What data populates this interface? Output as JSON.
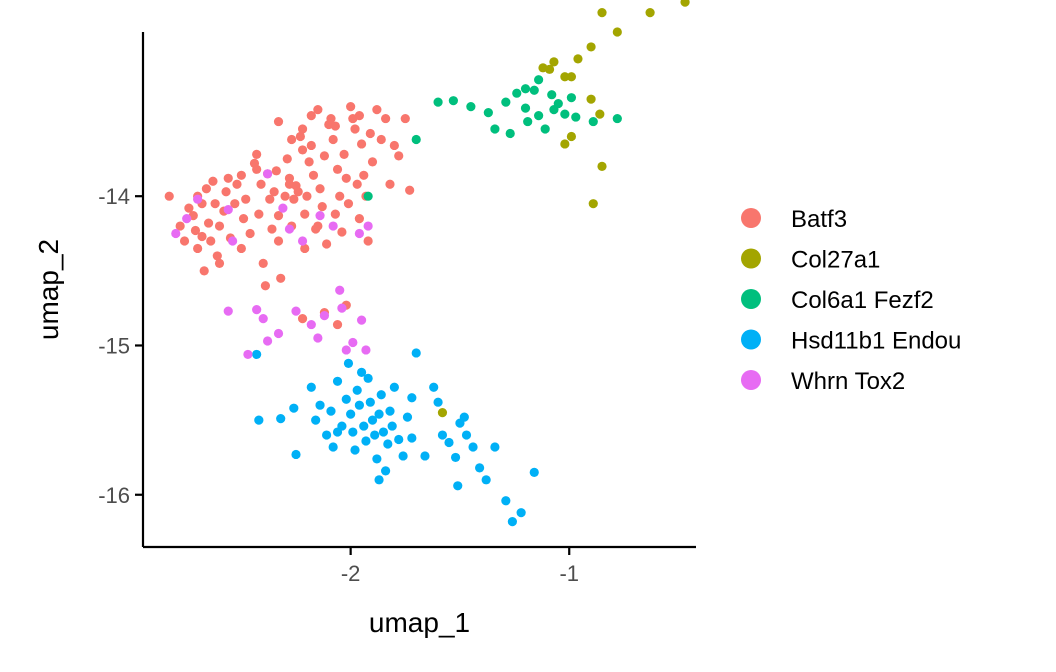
{
  "chart_data": {
    "type": "scatter",
    "xlabel": "umap_1",
    "ylabel": "umap_2",
    "xlim": [
      -2.95,
      -0.42
    ],
    "ylim": [
      -16.35,
      -12.9
    ],
    "xticks": [
      -2,
      -1
    ],
    "yticks": [
      -14,
      -15,
      -16
    ],
    "legend_position": "right",
    "series": [
      {
        "name": "Batf3",
        "color": "#F8766D",
        "points": [
          [
            -2.83,
            -14.0
          ],
          [
            -2.78,
            -14.2
          ],
          [
            -2.76,
            -14.3
          ],
          [
            -2.74,
            -14.08
          ],
          [
            -2.72,
            -14.13
          ],
          [
            -2.71,
            -14.23
          ],
          [
            -2.7,
            -14.35
          ],
          [
            -2.7,
            -14.0
          ],
          [
            -2.68,
            -14.05
          ],
          [
            -2.68,
            -14.27
          ],
          [
            -2.67,
            -14.5
          ],
          [
            -2.66,
            -13.95
          ],
          [
            -2.65,
            -14.18
          ],
          [
            -2.64,
            -14.3
          ],
          [
            -2.63,
            -13.9
          ],
          [
            -2.62,
            -14.05
          ],
          [
            -2.61,
            -14.4
          ],
          [
            -2.6,
            -14.2
          ],
          [
            -2.58,
            -14.1
          ],
          [
            -2.57,
            -13.97
          ],
          [
            -2.56,
            -13.88
          ],
          [
            -2.55,
            -14.28
          ],
          [
            -2.53,
            -14.05
          ],
          [
            -2.52,
            -13.92
          ],
          [
            -2.5,
            -14.35
          ],
          [
            -2.49,
            -14.15
          ],
          [
            -2.48,
            -14.02
          ],
          [
            -2.46,
            -14.25
          ],
          [
            -2.44,
            -13.78
          ],
          [
            -2.43,
            -13.82
          ],
          [
            -2.42,
            -14.12
          ],
          [
            -2.41,
            -13.92
          ],
          [
            -2.4,
            -14.45
          ],
          [
            -2.39,
            -14.6
          ],
          [
            -2.38,
            -13.85
          ],
          [
            -2.37,
            -14.02
          ],
          [
            -2.36,
            -14.22
          ],
          [
            -2.35,
            -13.97
          ],
          [
            -2.34,
            -13.83
          ],
          [
            -2.33,
            -14.13
          ],
          [
            -2.33,
            -14.3
          ],
          [
            -2.32,
            -14.55
          ],
          [
            -2.3,
            -14.0
          ],
          [
            -2.29,
            -13.75
          ],
          [
            -2.28,
            -13.88
          ],
          [
            -2.27,
            -14.2
          ],
          [
            -2.26,
            -14.02
          ],
          [
            -2.25,
            -13.93
          ],
          [
            -2.24,
            -13.97
          ],
          [
            -2.23,
            -13.6
          ],
          [
            -2.22,
            -13.69
          ],
          [
            -2.21,
            -14.12
          ],
          [
            -2.21,
            -14.35
          ],
          [
            -2.2,
            -14.0
          ],
          [
            -2.19,
            -13.77
          ],
          [
            -2.18,
            -13.66
          ],
          [
            -2.17,
            -13.86
          ],
          [
            -2.16,
            -14.22
          ],
          [
            -2.15,
            -13.42
          ],
          [
            -2.14,
            -13.95
          ],
          [
            -2.13,
            -14.07
          ],
          [
            -2.12,
            -13.73
          ],
          [
            -2.11,
            -14.32
          ],
          [
            -2.1,
            -13.52
          ],
          [
            -2.09,
            -13.48
          ],
          [
            -2.08,
            -13.62
          ],
          [
            -2.07,
            -14.12
          ],
          [
            -2.06,
            -13.82
          ],
          [
            -2.05,
            -14.0
          ],
          [
            -2.04,
            -14.24
          ],
          [
            -2.03,
            -13.72
          ],
          [
            -2.02,
            -13.88
          ],
          [
            -2.01,
            -14.05
          ],
          [
            -2.0,
            -13.4
          ],
          [
            -1.99,
            -13.48
          ],
          [
            -1.98,
            -13.55
          ],
          [
            -1.97,
            -13.92
          ],
          [
            -1.96,
            -14.15
          ],
          [
            -1.95,
            -13.65
          ],
          [
            -1.94,
            -13.86
          ],
          [
            -1.93,
            -14.0
          ],
          [
            -1.92,
            -14.3
          ],
          [
            -1.91,
            -13.58
          ],
          [
            -1.9,
            -13.77
          ],
          [
            -1.88,
            -13.42
          ],
          [
            -1.86,
            -13.62
          ],
          [
            -1.84,
            -13.48
          ],
          [
            -1.82,
            -13.92
          ],
          [
            -1.8,
            -13.66
          ],
          [
            -1.78,
            -13.73
          ],
          [
            -2.33,
            -13.5
          ],
          [
            -2.27,
            -13.62
          ],
          [
            -2.22,
            -13.55
          ],
          [
            -2.18,
            -13.46
          ],
          [
            -2.07,
            -13.53
          ],
          [
            -1.96,
            -13.46
          ],
          [
            -2.43,
            -13.72
          ],
          [
            -2.5,
            -13.86
          ],
          [
            -2.6,
            -14.45
          ],
          [
            -2.12,
            -14.78
          ],
          [
            -2.06,
            -14.86
          ],
          [
            -2.02,
            -14.73
          ],
          [
            -1.75,
            -13.48
          ],
          [
            -1.73,
            -13.96
          ],
          [
            -2.22,
            -14.82
          ],
          [
            -2.28,
            -13.92
          ],
          [
            -2.15,
            -14.2
          ]
        ]
      },
      {
        "name": "Col27a1",
        "color": "#A3A500",
        "points": [
          [
            -0.47,
            -12.7
          ],
          [
            -0.63,
            -12.77
          ],
          [
            -0.78,
            -12.9
          ],
          [
            -0.85,
            -12.77
          ],
          [
            -0.9,
            -13.0
          ],
          [
            -0.96,
            -13.08
          ],
          [
            -0.99,
            -13.2
          ],
          [
            -1.02,
            -13.2
          ],
          [
            -1.07,
            -13.1
          ],
          [
            -1.09,
            -13.15
          ],
          [
            -1.12,
            -13.14
          ],
          [
            -0.9,
            -13.35
          ],
          [
            -0.86,
            -13.45
          ],
          [
            -0.99,
            -13.6
          ],
          [
            -1.02,
            -13.65
          ],
          [
            -0.85,
            -13.8
          ],
          [
            -0.89,
            -14.05
          ],
          [
            -1.58,
            -15.45
          ]
        ]
      },
      {
        "name": "Col6a1 Fezf2",
        "color": "#00BF7D",
        "points": [
          [
            -1.08,
            -13.32
          ],
          [
            -1.14,
            -13.22
          ],
          [
            -1.2,
            -13.28
          ],
          [
            -1.24,
            -13.31
          ],
          [
            -1.29,
            -13.37
          ],
          [
            -1.37,
            -13.44
          ],
          [
            -1.45,
            -13.4
          ],
          [
            -1.53,
            -13.36
          ],
          [
            -1.6,
            -13.37
          ],
          [
            -1.7,
            -13.62
          ],
          [
            -1.92,
            -14.0
          ],
          [
            -1.07,
            -13.42
          ],
          [
            -1.11,
            -13.55
          ],
          [
            -1.19,
            -13.5
          ],
          [
            -1.02,
            -13.45
          ],
          [
            -1.27,
            -13.58
          ],
          [
            -0.97,
            -13.47
          ],
          [
            -0.89,
            -13.5
          ],
          [
            -0.78,
            -13.48
          ],
          [
            -1.14,
            -13.46
          ],
          [
            -1.05,
            -13.38
          ],
          [
            -0.99,
            -13.34
          ],
          [
            -1.2,
            -13.41
          ],
          [
            -1.34,
            -13.55
          ],
          [
            -1.16,
            -13.29
          ]
        ]
      },
      {
        "name": "Hsd11b1 Endou",
        "color": "#00B0F6",
        "points": [
          [
            -2.43,
            -15.06
          ],
          [
            -2.32,
            -15.49
          ],
          [
            -2.26,
            -15.42
          ],
          [
            -2.25,
            -15.73
          ],
          [
            -2.18,
            -15.28
          ],
          [
            -2.16,
            -15.5
          ],
          [
            -2.14,
            -15.4
          ],
          [
            -2.11,
            -15.6
          ],
          [
            -2.09,
            -15.44
          ],
          [
            -2.08,
            -15.68
          ],
          [
            -2.06,
            -15.24
          ],
          [
            -2.04,
            -15.54
          ],
          [
            -2.02,
            -15.36
          ],
          [
            -2.01,
            -15.12
          ],
          [
            -2.0,
            -15.46
          ],
          [
            -1.99,
            -15.58
          ],
          [
            -1.98,
            -15.7
          ],
          [
            -1.97,
            -15.3
          ],
          [
            -1.96,
            -15.4
          ],
          [
            -1.95,
            -15.18
          ],
          [
            -1.94,
            -15.54
          ],
          [
            -1.93,
            -15.64
          ],
          [
            -1.92,
            -15.22
          ],
          [
            -1.91,
            -15.38
          ],
          [
            -1.9,
            -15.5
          ],
          [
            -1.89,
            -15.6
          ],
          [
            -1.88,
            -15.76
          ],
          [
            -1.87,
            -15.46
          ],
          [
            -1.86,
            -15.33
          ],
          [
            -1.85,
            -15.58
          ],
          [
            -1.84,
            -15.84
          ],
          [
            -1.83,
            -15.66
          ],
          [
            -1.82,
            -15.44
          ],
          [
            -1.81,
            -15.54
          ],
          [
            -1.8,
            -15.28
          ],
          [
            -1.78,
            -15.63
          ],
          [
            -1.76,
            -15.74
          ],
          [
            -1.74,
            -15.48
          ],
          [
            -1.72,
            -15.62
          ],
          [
            -1.7,
            -15.05
          ],
          [
            -1.66,
            -15.74
          ],
          [
            -1.62,
            -15.28
          ],
          [
            -1.6,
            -15.38
          ],
          [
            -1.58,
            -15.6
          ],
          [
            -1.55,
            -15.65
          ],
          [
            -1.52,
            -15.75
          ],
          [
            -1.5,
            -15.52
          ],
          [
            -1.47,
            -15.6
          ],
          [
            -1.44,
            -15.68
          ],
          [
            -1.41,
            -15.82
          ],
          [
            -1.38,
            -15.9
          ],
          [
            -1.34,
            -15.68
          ],
          [
            -1.29,
            -16.04
          ],
          [
            -1.26,
            -16.18
          ],
          [
            -1.22,
            -16.12
          ],
          [
            -1.16,
            -15.85
          ],
          [
            -1.48,
            -15.48
          ],
          [
            -1.51,
            -15.94
          ],
          [
            -1.72,
            -15.35
          ],
          [
            -2.42,
            -15.5
          ],
          [
            -1.87,
            -15.9
          ],
          [
            -2.06,
            -15.58
          ]
        ]
      },
      {
        "name": "Whrn Tox2",
        "color": "#E76BF3",
        "points": [
          [
            -2.8,
            -14.25
          ],
          [
            -2.75,
            -14.15
          ],
          [
            -2.7,
            -14.02
          ],
          [
            -2.56,
            -14.09
          ],
          [
            -2.54,
            -14.3
          ],
          [
            -2.38,
            -13.85
          ],
          [
            -2.31,
            -14.08
          ],
          [
            -2.28,
            -14.22
          ],
          [
            -2.22,
            -14.3
          ],
          [
            -2.14,
            -14.13
          ],
          [
            -2.08,
            -14.2
          ],
          [
            -1.96,
            -14.25
          ],
          [
            -1.92,
            -14.2
          ],
          [
            -2.05,
            -14.63
          ],
          [
            -2.12,
            -14.8
          ],
          [
            -2.25,
            -14.77
          ],
          [
            -2.04,
            -14.75
          ],
          [
            -2.15,
            -14.95
          ],
          [
            -1.93,
            -15.03
          ],
          [
            -1.95,
            -14.83
          ],
          [
            -2.4,
            -14.82
          ],
          [
            -2.43,
            -14.76
          ],
          [
            -2.47,
            -15.06
          ],
          [
            -2.38,
            -14.97
          ],
          [
            -2.33,
            -14.92
          ],
          [
            -2.18,
            -14.86
          ],
          [
            -1.99,
            -14.98
          ],
          [
            -2.02,
            -15.03
          ],
          [
            -2.56,
            -14.77
          ]
        ]
      }
    ]
  }
}
